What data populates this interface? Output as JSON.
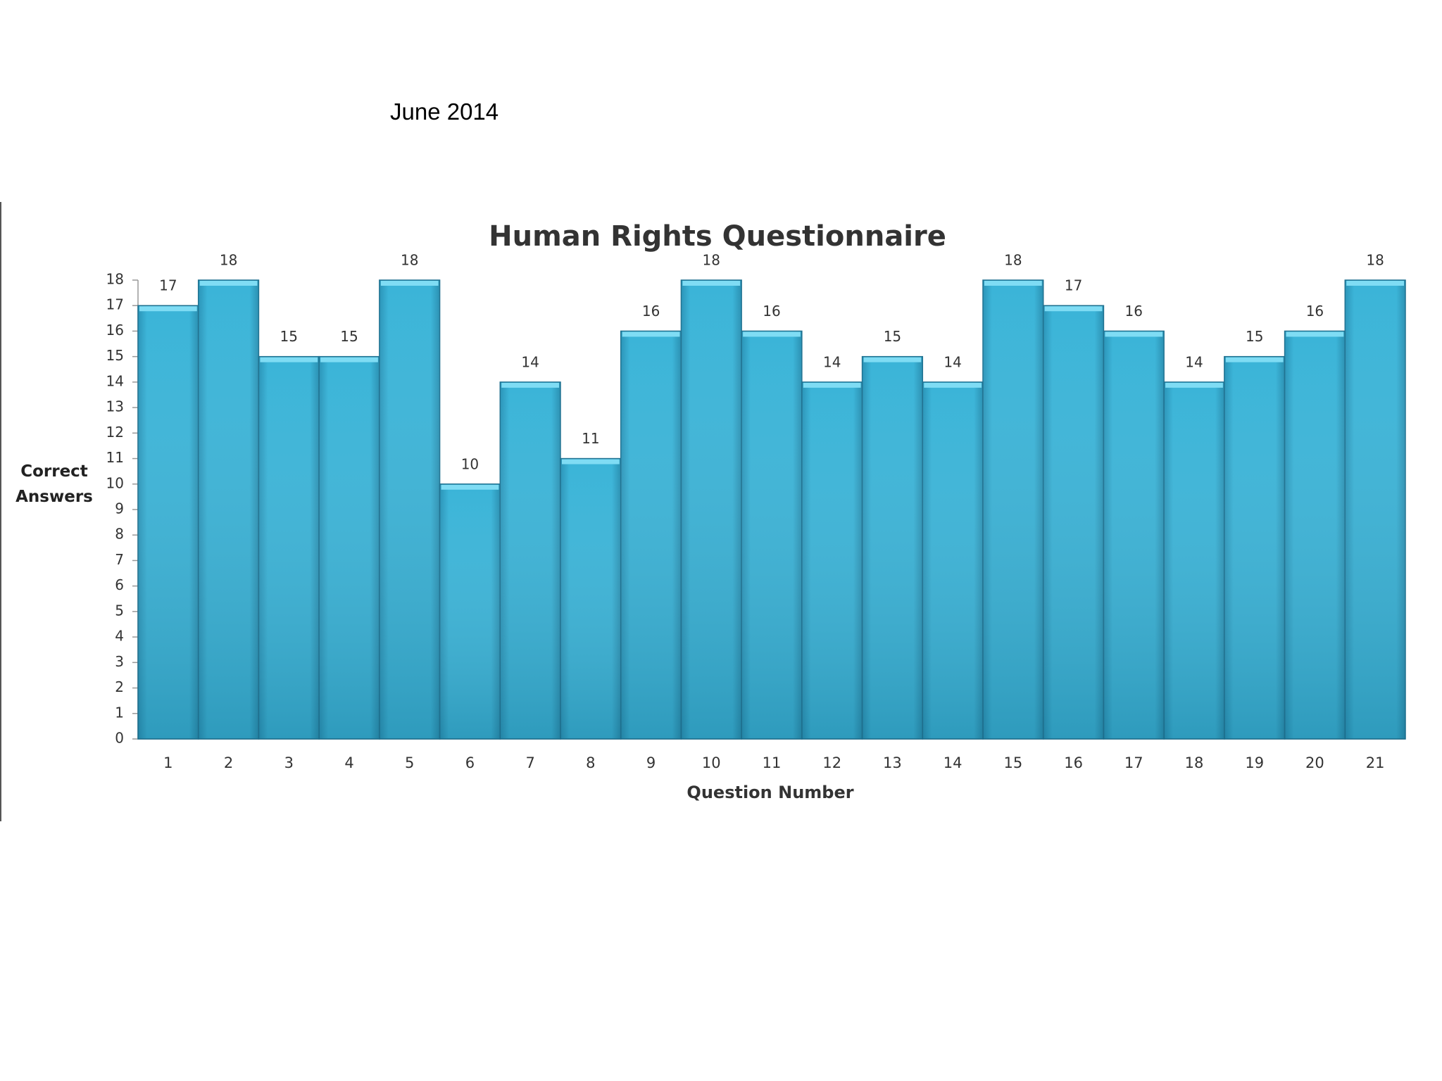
{
  "date": "June 2014",
  "chart_data": {
    "type": "bar",
    "title": "Human Rights Questionnaire",
    "x_label": "Question Number",
    "y_label": "Correct Answers",
    "categories": [
      "1",
      "2",
      "3",
      "4",
      "5",
      "6",
      "7",
      "8",
      "9",
      "10",
      "11",
      "12",
      "13",
      "14",
      "15",
      "16",
      "17",
      "18",
      "19",
      "20",
      "21"
    ],
    "values": [
      17,
      18,
      15,
      15,
      18,
      10,
      14,
      11,
      16,
      18,
      16,
      14,
      15,
      14,
      18,
      17,
      16,
      14,
      15,
      16,
      18
    ],
    "color": "#38b4d8",
    "ylim": [
      0,
      18
    ],
    "yticks": [
      0,
      1,
      2,
      3,
      4,
      5,
      6,
      7,
      8,
      9,
      10,
      11,
      12,
      13,
      14,
      15,
      16,
      17,
      18
    ],
    "grid": false
  }
}
